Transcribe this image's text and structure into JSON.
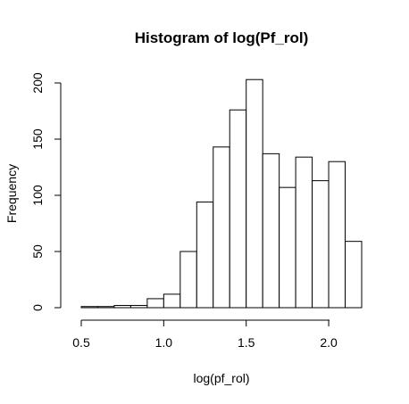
{
  "chart_data": {
    "type": "bar",
    "title": "Histogram of log(Pf_rol)",
    "xlabel": "log(pf_rol)",
    "ylabel": "Frequency",
    "bin_edges": [
      0.5,
      0.6,
      0.7,
      0.8,
      0.9,
      1.0,
      1.1,
      1.2,
      1.3,
      1.4,
      1.5,
      1.6,
      1.7,
      1.8,
      1.9,
      2.0,
      2.1,
      2.2
    ],
    "values": [
      1,
      1,
      2,
      2,
      8,
      12,
      50,
      94,
      143,
      176,
      203,
      137,
      107,
      134,
      113,
      130,
      59
    ],
    "xlim": [
      0.5,
      2.2
    ],
    "ylim": [
      0,
      210
    ],
    "x_ticks": [
      "0.5",
      "1.0",
      "1.5",
      "2.0"
    ],
    "y_ticks": [
      "0",
      "50",
      "100",
      "150",
      "200"
    ],
    "grid": false,
    "colors": {
      "fill": "#ffffff",
      "stroke": "#000000"
    }
  }
}
